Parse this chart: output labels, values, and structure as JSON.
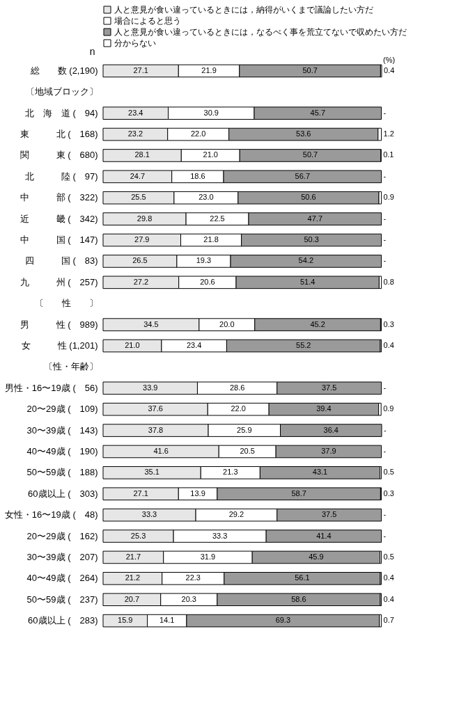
{
  "chart_data": {
    "type": "bar",
    "orientation": "horizontal",
    "stacked": true,
    "ylabel": "n",
    "legend": "top",
    "annotations": [
      "(%)"
    ],
    "categories": [
      "総　　数 (2,190)",
      "〔地域ブロック〕",
      "北　海　道 (　94)",
      "東　　　北 (　168)",
      "関　　　東 (　680)",
      "北　　　陸 (　97)",
      "中　　　部 (　322)",
      "近　　　畿 (　342)",
      "中　　　国 (　147)",
      "四　　　国 (　83)",
      "九　　　州 (　257)",
      "〔　　性　　〕",
      "男　　　性 (　989)",
      "女　　　性 (1,201)",
      "〔性・年齢〕",
      "男性・16〜19歳 (　56)",
      "20〜29歳 (　109)",
      "30〜39歳 (　143)",
      "40〜49歳 (　190)",
      "50〜59歳 (　188)",
      "60歳以上 (　303)",
      "女性・16〜19歳 (　48)",
      "20〜29歳 (　162)",
      "30〜39歳 (　207)",
      "40〜49歳 (　264)",
      "50〜59歳 (　237)",
      "60歳以上 (　283)"
    ],
    "series": [
      {
        "name": "人と意見が食い違っているときには，納得がいくまで議論したい方だ",
        "color": "#e6e6e6",
        "values": [
          27.1,
          null,
          23.4,
          23.2,
          28.1,
          24.7,
          25.5,
          29.8,
          27.9,
          26.5,
          27.2,
          null,
          34.5,
          21.0,
          null,
          33.9,
          37.6,
          37.8,
          41.6,
          35.1,
          27.1,
          33.3,
          25.3,
          21.7,
          21.2,
          20.7,
          15.9
        ],
        "value_labels": [
          "27.1",
          null,
          "23.4",
          "23.2",
          "28.1",
          "24.7",
          "25.5",
          "29.8",
          "27.9",
          "26.5",
          "27.2",
          null,
          "34.5",
          "21.0",
          null,
          "33.9",
          "37.6",
          "37.8",
          "41.6",
          "35.1",
          "27.1",
          "33.3",
          "25.3",
          "21.7",
          "21.2",
          "20.7",
          "15.9"
        ]
      },
      {
        "name": "場合によると思う",
        "color": "#ffffff",
        "values": [
          21.9,
          null,
          30.9,
          22.0,
          21.0,
          18.6,
          23.0,
          22.5,
          21.8,
          19.3,
          20.6,
          null,
          20.0,
          23.4,
          null,
          28.6,
          22.0,
          25.9,
          20.5,
          21.3,
          13.9,
          29.2,
          33.3,
          31.9,
          22.3,
          20.3,
          14.1
        ],
        "value_labels": [
          "21.9",
          null,
          "30.9",
          "22.0",
          "21.0",
          "18.6",
          "23.0",
          "22.5",
          "21.8",
          "19.3",
          "20.6",
          null,
          "20.0",
          "23.4",
          null,
          "28.6",
          "22.0",
          "25.9",
          "20.5",
          "21.3",
          "13.9",
          "29.2",
          "33.3",
          "31.9",
          "22.3",
          "20.3",
          "14.1"
        ]
      },
      {
        "name": "人と意見が食い違っているときには，なるべく事を荒立てないで収めたい方だ",
        "color": "#9a9a9a",
        "values": [
          50.7,
          null,
          45.7,
          53.6,
          50.7,
          56.7,
          50.6,
          47.7,
          50.3,
          54.2,
          51.4,
          null,
          45.2,
          55.2,
          null,
          37.5,
          39.4,
          36.4,
          37.9,
          43.1,
          58.7,
          37.5,
          41.4,
          45.9,
          56.1,
          58.6,
          69.3
        ],
        "value_labels": [
          "50.7",
          null,
          "45.7",
          "53.6",
          "50.7",
          "56.7",
          "50.6",
          "47.7",
          "50.3",
          "54.2",
          "51.4",
          null,
          "45.2",
          "55.2",
          null,
          "37.5",
          "39.4",
          "36.4",
          "37.9",
          "43.1",
          "58.7",
          "37.5",
          "41.4",
          "45.9",
          "56.1",
          "58.6",
          "69.3"
        ]
      },
      {
        "name": "分からない",
        "color": "#ffffff",
        "values": [
          0.4,
          null,
          0,
          1.2,
          0.1,
          0,
          0.9,
          0,
          0,
          0,
          0.8,
          null,
          0.3,
          0.4,
          null,
          0,
          0.9,
          0,
          0,
          0.5,
          0.3,
          0,
          0,
          0.5,
          0.4,
          0.4,
          0.7
        ],
        "value_labels": [
          "0.4",
          null,
          "-",
          "1.2",
          "0.1",
          "-",
          "0.9",
          "-",
          "-",
          "-",
          "0.8",
          null,
          "0.3",
          "0.4",
          null,
          "-",
          "0.9",
          "-",
          "-",
          "0.5",
          "0.3",
          "-",
          "-",
          "0.5",
          "0.4",
          "0.4",
          "0.7"
        ]
      }
    ]
  }
}
